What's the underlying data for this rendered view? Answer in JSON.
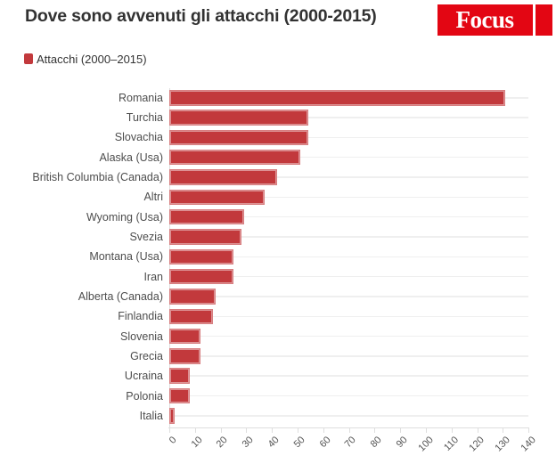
{
  "header": {
    "title": "Dove sono avvenuti gli attacchi (2000-2015)",
    "logo_text": "Focus",
    "logo_color": "#e30613"
  },
  "legend": {
    "label": "Attacchi (2000–2015)",
    "swatch_color": "#c2393c"
  },
  "chart_data": {
    "type": "bar",
    "orientation": "horizontal",
    "title": "Dove sono avvenuti gli attacchi (2000-2015)",
    "legend_entries": [
      "Attacchi (2000–2015)"
    ],
    "legend_position": "top-left",
    "bar_color": "#c2393c",
    "grid": "light horizontal row lines",
    "categories": [
      "Romania",
      "Turchia",
      "Slovachia",
      "Alaska (Usa)",
      "British Columbia (Canada)",
      "Altri",
      "Wyoming (Usa)",
      "Svezia",
      "Montana (Usa)",
      "Iran",
      "Alberta (Canada)",
      "Finlandia",
      "Slovenia",
      "Grecia",
      "Ucraina",
      "Polonia",
      "Italia"
    ],
    "values": [
      131,
      54,
      54,
      51,
      42,
      37,
      29,
      28,
      25,
      25,
      18,
      17,
      12,
      12,
      8,
      8,
      2
    ],
    "xlabel": "",
    "ylabel": "",
    "xlim": [
      0,
      140
    ],
    "xticks": [
      0,
      10,
      20,
      30,
      40,
      50,
      60,
      70,
      80,
      90,
      100,
      110,
      120,
      130,
      140
    ],
    "xtick_rotation_deg": -45
  }
}
